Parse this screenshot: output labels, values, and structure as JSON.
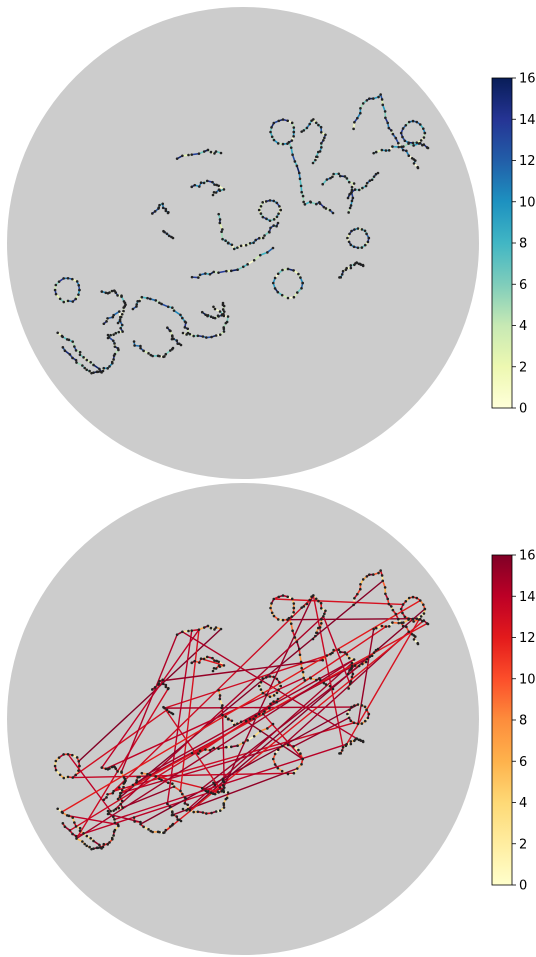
{
  "figure": {
    "panels": [
      {
        "colormap": "YlGnBu",
        "colors": [
          "#ffffd9",
          "#edf8b1",
          "#c7e9b4",
          "#7fcdbb",
          "#41b6c4",
          "#1d91c0",
          "#225ea8",
          "#253494",
          "#081d58"
        ]
      },
      {
        "colormap": "YlOrRd",
        "colors": [
          "#ffffcc",
          "#ffeda0",
          "#fed976",
          "#feb24c",
          "#fd8d3c",
          "#fc4e2a",
          "#e31a1c",
          "#bd0026",
          "#800026"
        ]
      }
    ],
    "background_color": "#cccccc"
  },
  "chart_data": [
    {
      "type": "network",
      "plot_shape": "circular",
      "edge_color_scale": {
        "min": 0,
        "max": 16,
        "colormap": "YlGnBu"
      },
      "colorbar_ticks": [
        "0",
        "2",
        "4",
        "6",
        "8",
        "10",
        "12",
        "14",
        "16"
      ],
      "edge_weight_range": [
        0,
        16
      ]
    },
    {
      "type": "network",
      "plot_shape": "circular",
      "edge_color_scale": {
        "min": 0,
        "max": 16,
        "colormap": "YlOrRd"
      },
      "colorbar_ticks": [
        "0",
        "2",
        "4",
        "6",
        "8",
        "10",
        "12",
        "14",
        "16"
      ],
      "edge_weight_range": [
        0,
        16
      ]
    }
  ]
}
